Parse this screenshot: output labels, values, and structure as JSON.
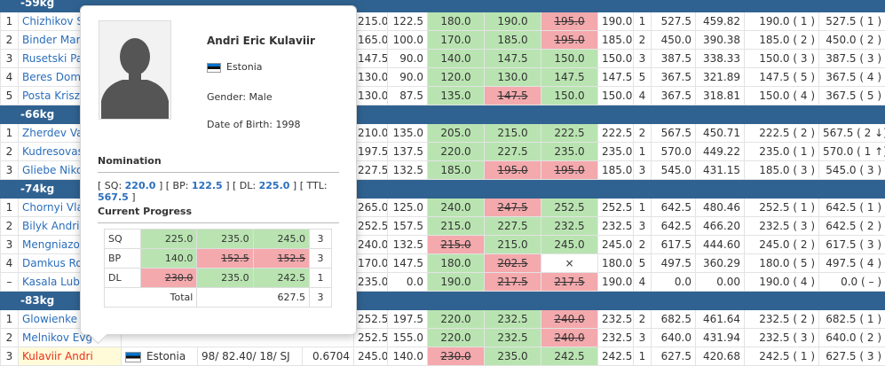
{
  "categories": {
    "c66": "-66kg",
    "c74": "-74kg",
    "c83": "-83kg"
  },
  "rows": {
    "r1": {
      "place": "1",
      "name": "Chizhikov Se",
      "sq": "215.0",
      "bw": "122.5",
      "a1": "180.0",
      "a2": "190.0",
      "a3": "195.0",
      "best": "190.0",
      "rank": "1",
      "total": "527.5",
      "pts": "459.82",
      "bestpl": "190.0 ( 1 )",
      "totpl": "527.5 ( 1 )"
    },
    "r2": {
      "place": "2",
      "name": "Binder Marku",
      "sq": "165.0",
      "bw": "100.0",
      "a1": "170.0",
      "a2": "185.0",
      "a3": "195.0",
      "best": "185.0",
      "rank": "2",
      "total": "450.0",
      "pts": "390.38",
      "bestpl": "185.0 ( 2 )",
      "totpl": "450.0 ( 2 )"
    },
    "r3": {
      "place": "3",
      "name": "Rusetski Pav",
      "sq": "147.5",
      "bw": "90.0",
      "a1": "140.0",
      "a2": "147.5",
      "a3": "150.0",
      "best": "150.0",
      "rank": "3",
      "total": "387.5",
      "pts": "338.33",
      "bestpl": "150.0 ( 3 )",
      "totpl": "387.5 ( 3 )"
    },
    "r4": {
      "place": "4",
      "name": "Beres Domin",
      "sq": "130.0",
      "bw": "90.0",
      "a1": "120.0",
      "a2": "130.0",
      "a3": "147.5",
      "best": "147.5",
      "rank": "5",
      "total": "367.5",
      "pts": "321.89",
      "bestpl": "147.5 ( 5 )",
      "totpl": "367.5 ( 4 )"
    },
    "r5": {
      "place": "5",
      "name": "Posta Krisztia",
      "sq": "130.0",
      "bw": "87.5",
      "a1": "135.0",
      "a2": "147.5",
      "a3": "150.0",
      "best": "150.0",
      "rank": "4",
      "total": "367.5",
      "pts": "318.81",
      "bestpl": "150.0 ( 4 )",
      "totpl": "367.5 ( 5 )"
    },
    "r6": {
      "place": "1",
      "name": "Zherdev Vad",
      "sq": "210.0",
      "bw": "135.0",
      "a1": "205.0",
      "a2": "215.0",
      "a3": "222.5",
      "best": "222.5",
      "rank": "2",
      "total": "567.5",
      "pts": "450.71",
      "bestpl": "222.5 ( 2 )",
      "totpl": "567.5 ( 2 ↓)"
    },
    "r7": {
      "place": "2",
      "name": "Kudresovas K",
      "sq": "197.5",
      "bw": "137.5",
      "a1": "220.0",
      "a2": "227.5",
      "a3": "235.0",
      "best": "235.0",
      "rank": "1",
      "total": "570.0",
      "pts": "449.22",
      "bestpl": "235.0 ( 1 )",
      "totpl": "570.0 ( 1 ↑)"
    },
    "r8": {
      "place": "3",
      "name": "Gliebe Nikol",
      "sq": "227.5",
      "bw": "132.5",
      "a1": "185.0",
      "a2": "195.0",
      "a3": "195.0",
      "best": "185.0",
      "rank": "3",
      "total": "545.0",
      "pts": "431.15",
      "bestpl": "185.0 ( 3 )",
      "totpl": "545.0 ( 3 )"
    },
    "r9": {
      "place": "1",
      "name": "Chornyi Vlad",
      "sq": "265.0",
      "bw": "125.0",
      "a1": "240.0",
      "a2": "247.5",
      "a3": "252.5",
      "best": "252.5",
      "rank": "1",
      "total": "642.5",
      "pts": "480.46",
      "bestpl": "252.5 ( 1 )",
      "totpl": "642.5 ( 1 )"
    },
    "r10": {
      "place": "2",
      "name": "Bilyk Andriy",
      "sq": "252.5",
      "bw": "157.5",
      "a1": "215.0",
      "a2": "227.5",
      "a3": "232.5",
      "best": "232.5",
      "rank": "3",
      "total": "642.5",
      "pts": "466.20",
      "bestpl": "232.5 ( 3 )",
      "totpl": "642.5 ( 2 )"
    },
    "r11": {
      "place": "3",
      "name": "Mengniazov",
      "sq": "240.0",
      "bw": "132.5",
      "a1": "215.0",
      "a2": "215.0",
      "a3": "245.0",
      "best": "245.0",
      "rank": "2",
      "total": "617.5",
      "pts": "444.60",
      "bestpl": "245.0 ( 2 )",
      "totpl": "617.5 ( 3 )"
    },
    "r12": {
      "place": "4",
      "name": "Damkus Rok",
      "sq": "170.0",
      "bw": "147.5",
      "a1": "180.0",
      "a2": "202.5",
      "a3": "×",
      "best": "180.0",
      "rank": "5",
      "total": "497.5",
      "pts": "360.29",
      "bestpl": "180.0 ( 5 )",
      "totpl": "497.5 ( 4 )"
    },
    "r13": {
      "place": "–",
      "name": "Kasala Lubos",
      "sq": "235.0",
      "bw": "0.0",
      "a1": "190.0",
      "a2": "217.5",
      "a3": "217.5",
      "best": "190.0",
      "rank": "4",
      "total": "0.0",
      "pts": "0.00",
      "bestpl": "190.0 ( 4 )",
      "totpl": "0.0 ( – )"
    },
    "r14": {
      "place": "1",
      "name": "Glowienke S",
      "sq": "252.5",
      "bw": "197.5",
      "a1": "220.0",
      "a2": "232.5",
      "a3": "240.0",
      "best": "232.5",
      "rank": "2",
      "total": "682.5",
      "pts": "461.64",
      "bestpl": "232.5 ( 2 )",
      "totpl": "682.5 ( 1 )"
    },
    "r15": {
      "place": "2",
      "name": "Melnikov Evg",
      "sq": "252.5",
      "bw": "155.0",
      "a1": "220.0",
      "a2": "232.5",
      "a3": "240.0",
      "best": "232.5",
      "rank": "3",
      "total": "640.0",
      "pts": "431.94",
      "bestpl": "232.5 ( 3 )",
      "totpl": "640.0 ( 2 )"
    },
    "r16": {
      "place": "3",
      "name": "Kulaviir Andri",
      "country": "Estonia",
      "info": "98/ 82.40/ 18/ SJ",
      "coef": "0.6704",
      "sq": "245.0",
      "bw": "140.0",
      "a1": "230.0",
      "a2": "235.0",
      "a3": "242.5",
      "best": "242.5",
      "rank": "1",
      "total": "627.5",
      "pts": "420.68",
      "bestpl": "242.5 ( 1 )",
      "totpl": "627.5 ( 3 )"
    }
  },
  "popup": {
    "name": "Andri Eric Kulaviir",
    "country": "Estonia",
    "gender": "Gender: Male",
    "dob": "Date of Birth: 1998",
    "nomination_title": "Nomination",
    "nom": {
      "sq_label": "SQ:",
      "sq": "220.0",
      "bp_label": "BP:",
      "bp": "122.5",
      "dl_label": "DL:",
      "dl": "225.0",
      "ttl_label": "TTL:",
      "ttl": "567.5"
    },
    "progress_title": "Current Progress",
    "progress": {
      "sq": {
        "label": "SQ",
        "a1": "225.0",
        "a2": "235.0",
        "a3": "245.0",
        "count": "3"
      },
      "bp": {
        "label": "BP",
        "a1": "140.0",
        "a2": "152.5",
        "a3": "152.5",
        "count": "3"
      },
      "dl": {
        "label": "DL",
        "a1": "230.0",
        "a2": "235.0",
        "a3": "242.5",
        "count": "1"
      },
      "total": {
        "label": "Total",
        "value": "627.5",
        "count": "3"
      }
    }
  },
  "colors": {
    "header": "#306291",
    "good": "#b9e4b1",
    "bad": "#f4a9ad",
    "link": "#2a6ebb",
    "highlight": "#e8301a"
  }
}
